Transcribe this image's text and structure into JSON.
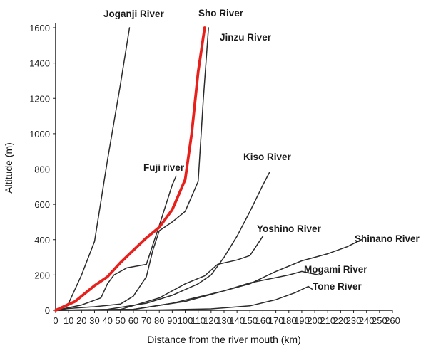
{
  "chart_data": {
    "type": "line",
    "title": "",
    "xlabel": "Distance from the river mouth (km)",
    "ylabel": "Altitude (m)",
    "xlim": [
      0,
      260
    ],
    "ylim": [
      0,
      1600
    ],
    "x_ticks": [
      "0",
      "10",
      "20",
      "30",
      "40",
      "50",
      "60",
      "70",
      "80",
      "90",
      "100",
      "110",
      "120",
      "130",
      "140",
      "150",
      "160",
      "170",
      "180",
      "190",
      "200",
      "210",
      "220",
      "230",
      "240",
      "250",
      "260"
    ],
    "y_ticks": [
      "0",
      "200",
      "400",
      "600",
      "800",
      "1000",
      "1200",
      "1400",
      "1600"
    ],
    "grid": false,
    "colors": {
      "default_line": "#2b2b2b",
      "highlight": "#e8201c",
      "axis": "#222222"
    },
    "series": [
      {
        "name": "Joganji River",
        "highlight": false,
        "points": [
          [
            0,
            0
          ],
          [
            10,
            40
          ],
          [
            20,
            200
          ],
          [
            30,
            390
          ],
          [
            40,
            850
          ],
          [
            50,
            1280
          ],
          [
            57,
            1600
          ]
        ]
      },
      {
        "name": "Sho River",
        "highlight": true,
        "points": [
          [
            0,
            0
          ],
          [
            15,
            50
          ],
          [
            30,
            140
          ],
          [
            40,
            190
          ],
          [
            50,
            270
          ],
          [
            60,
            340
          ],
          [
            70,
            410
          ],
          [
            80,
            470
          ],
          [
            90,
            570
          ],
          [
            100,
            740
          ],
          [
            105,
            1000
          ],
          [
            110,
            1350
          ],
          [
            115,
            1600
          ]
        ]
      },
      {
        "name": "Jinzu River",
        "highlight": false,
        "points": [
          [
            0,
            0
          ],
          [
            10,
            10
          ],
          [
            30,
            20
          ],
          [
            50,
            35
          ],
          [
            60,
            80
          ],
          [
            70,
            190
          ],
          [
            75,
            340
          ],
          [
            80,
            450
          ],
          [
            90,
            500
          ],
          [
            100,
            560
          ],
          [
            110,
            730
          ],
          [
            114,
            1200
          ],
          [
            118,
            1600
          ]
        ]
      },
      {
        "name": "Fuji river",
        "highlight": false,
        "points": [
          [
            0,
            0
          ],
          [
            20,
            30
          ],
          [
            35,
            70
          ],
          [
            40,
            150
          ],
          [
            45,
            200
          ],
          [
            55,
            240
          ],
          [
            70,
            260
          ],
          [
            80,
            480
          ],
          [
            90,
            710
          ],
          [
            93,
            760
          ]
        ]
      },
      {
        "name": "Kiso River",
        "highlight": false,
        "points": [
          [
            0,
            0
          ],
          [
            40,
            5
          ],
          [
            70,
            40
          ],
          [
            90,
            85
          ],
          [
            110,
            150
          ],
          [
            120,
            200
          ],
          [
            130,
            300
          ],
          [
            140,
            420
          ],
          [
            150,
            560
          ],
          [
            160,
            710
          ],
          [
            165,
            780
          ]
        ]
      },
      {
        "name": "Yoshino River",
        "highlight": false,
        "points": [
          [
            0,
            0
          ],
          [
            50,
            5
          ],
          [
            80,
            70
          ],
          [
            100,
            150
          ],
          [
            115,
            195
          ],
          [
            125,
            260
          ],
          [
            140,
            285
          ],
          [
            150,
            310
          ],
          [
            160,
            420
          ]
        ]
      },
      {
        "name": "Shinano River",
        "highlight": false,
        "points": [
          [
            0,
            0
          ],
          [
            60,
            5
          ],
          [
            90,
            40
          ],
          [
            110,
            75
          ],
          [
            130,
            110
          ],
          [
            150,
            150
          ],
          [
            170,
            220
          ],
          [
            190,
            280
          ],
          [
            210,
            320
          ],
          [
            225,
            360
          ],
          [
            236,
            400
          ]
        ]
      },
      {
        "name": "Mogami River",
        "highlight": false,
        "points": [
          [
            0,
            0
          ],
          [
            60,
            5
          ],
          [
            100,
            50
          ],
          [
            130,
            110
          ],
          [
            150,
            155
          ],
          [
            170,
            185
          ],
          [
            180,
            200
          ],
          [
            190,
            220
          ],
          [
            203,
            200
          ]
        ]
      },
      {
        "name": "Tone River",
        "highlight": false,
        "points": [
          [
            0,
            0
          ],
          [
            80,
            2
          ],
          [
            120,
            8
          ],
          [
            150,
            25
          ],
          [
            170,
            60
          ],
          [
            185,
            100
          ],
          [
            195,
            135
          ],
          [
            198,
            120
          ]
        ]
      }
    ]
  }
}
